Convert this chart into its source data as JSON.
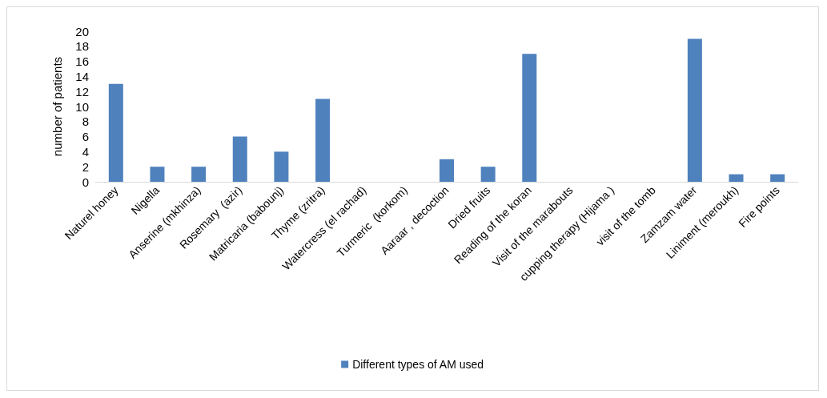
{
  "chart_data": {
    "type": "bar",
    "ylabel": "number of patients",
    "categories": [
      "Naturel honey",
      "Nigella",
      "Anserine (mkhinza)",
      "Rosemary  (azir)",
      "Matricaria (babounj)",
      "Thyme (zritra)",
      "Watercress (el rachad)",
      "Turmeric  (korkom)",
      "Aaraar , decoction",
      "Dried fruits",
      "Reading of the koran",
      "Visit of the marabouts",
      "cupping therapy (Hijama )",
      "visit of the tomb",
      "Zamzam water",
      "Liniment (meroukh)",
      "Fire points"
    ],
    "series": [
      {
        "name": "Different types of AM used",
        "color": "#4f81bd",
        "values": [
          13,
          2,
          2,
          6,
          4,
          11,
          0,
          0,
          3,
          2,
          17,
          0,
          0,
          0,
          19,
          1,
          1
        ]
      }
    ],
    "ylim": [
      0,
      20
    ],
    "yticks": [
      0,
      2,
      4,
      6,
      8,
      10,
      12,
      14,
      16,
      18,
      20
    ],
    "grid": false,
    "legend": "bottom"
  }
}
